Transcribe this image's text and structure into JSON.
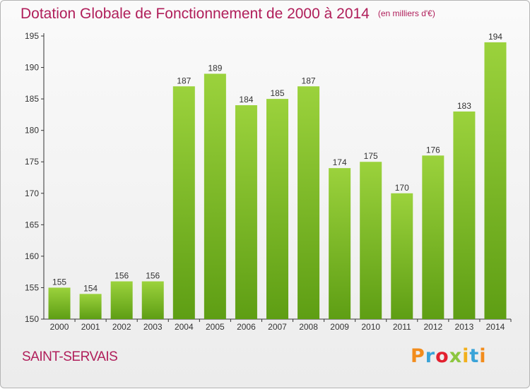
{
  "title": "Dotation Globale de Fonctionnement de 2000 à 2014",
  "subtitle": "(en milliers d'€)",
  "commune": "SAINT-SERVAIS",
  "logo_text": "Proxiti",
  "colors": {
    "title": "#b01e5a",
    "bar_light": "#9bd23c",
    "bar_dark": "#5e9e14"
  },
  "chart_data": {
    "type": "bar",
    "categories": [
      "2000",
      "2001",
      "2002",
      "2003",
      "2004",
      "2005",
      "2006",
      "2007",
      "2008",
      "2009",
      "2010",
      "2011",
      "2012",
      "2013",
      "2014"
    ],
    "values": [
      155,
      154,
      156,
      156,
      187,
      189,
      184,
      185,
      187,
      174,
      175,
      170,
      176,
      183,
      194
    ],
    "ylim": [
      150,
      195
    ],
    "yticks": [
      150,
      155,
      160,
      165,
      170,
      175,
      180,
      185,
      190,
      195
    ],
    "grid": false,
    "data_labels": true
  }
}
